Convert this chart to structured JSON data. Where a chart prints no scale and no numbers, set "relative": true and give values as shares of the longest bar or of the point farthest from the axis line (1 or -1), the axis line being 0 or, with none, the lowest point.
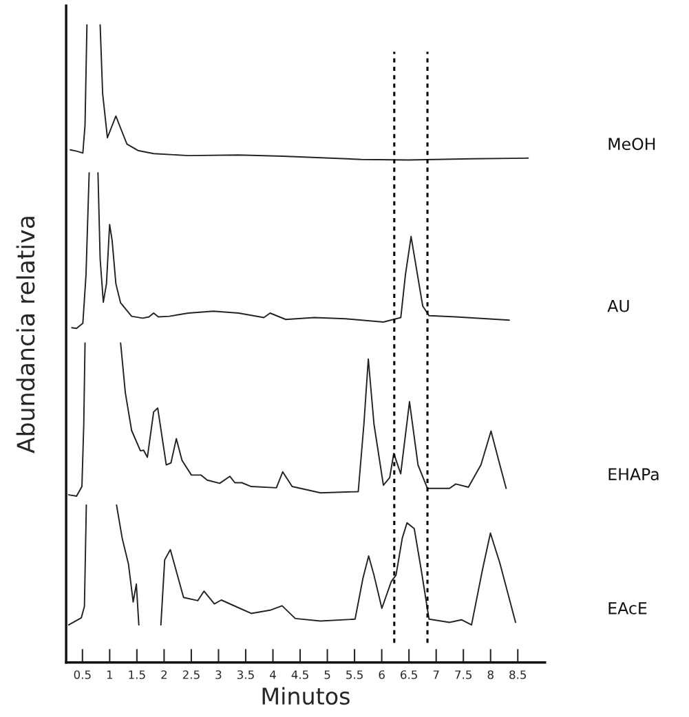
{
  "chart_data": {
    "type": "line",
    "relative": true,
    "xlabel": "Minutos",
    "ylabel": "Abundancia relativa",
    "legend": false,
    "grid": false,
    "marker": "none",
    "line_style": "solid",
    "tick_labels": "x",
    "xlim": [
      0.2,
      9
    ],
    "xticks": [
      0.5,
      1,
      1.5,
      2,
      2.5,
      3,
      3.5,
      4,
      4.5,
      5,
      5.5,
      6,
      6.5,
      7,
      7.5,
      8,
      8.5
    ],
    "ref_lines": [
      {
        "axis": "x",
        "value": 6.23,
        "color": "#000000",
        "line_style": "dotted"
      },
      {
        "axis": "x",
        "value": 6.84,
        "color": "#000000",
        "line_style": "dotted"
      }
    ],
    "series": [
      {
        "name": "MeOH",
        "color": "#222222",
        "x": [
          0.276,
          0.391,
          0.507,
          0.547,
          0.582,
          0.7,
          0.825,
          0.871,
          0.958,
          1.027,
          1.114,
          1.201,
          1.317,
          1.519,
          1.808,
          2.444,
          3.37,
          4.18,
          5.625,
          6.49,
          7.65,
          8.69
        ],
        "values": [
          0.804,
          0.802,
          0.799,
          0.843,
          1.0,
          null,
          1.0,
          0.892,
          0.823,
          0.838,
          0.857,
          0.838,
          0.813,
          0.803,
          0.798,
          0.795,
          0.796,
          0.794,
          0.789,
          0.788,
          0.79,
          0.791
        ]
      },
      {
        "name": "AU",
        "color": "#222222",
        "x": [
          0.304,
          0.391,
          0.507,
          0.565,
          0.623,
          0.7,
          0.785,
          0.825,
          0.883,
          0.941,
          0.999,
          1.045,
          1.114,
          1.201,
          1.403,
          1.606,
          1.722,
          1.808,
          1.895,
          2.097,
          2.444,
          2.907,
          3.37,
          3.833,
          3.948,
          4.237,
          4.758,
          5.336,
          6.03,
          6.35,
          6.435,
          6.539,
          6.637,
          6.753,
          6.869,
          7.36,
          8.344
        ],
        "values": [
          0.525,
          0.524,
          0.532,
          0.608,
          0.768,
          null,
          0.768,
          0.633,
          0.565,
          0.594,
          0.687,
          0.662,
          0.594,
          0.564,
          0.543,
          0.54,
          0.542,
          0.548,
          0.542,
          0.543,
          0.548,
          0.551,
          0.548,
          0.541,
          0.548,
          0.538,
          0.541,
          0.539,
          0.534,
          0.541,
          0.608,
          0.668,
          0.618,
          0.559,
          0.544,
          0.542,
          0.537
        ]
      },
      {
        "name": "EHAPa",
        "color": "#222222",
        "x": [
          0.247,
          0.391,
          0.49,
          0.524,
          0.547,
          0.9,
          1.201,
          1.288,
          1.403,
          1.565,
          1.623,
          1.693,
          1.808,
          1.883,
          2.04,
          2.126,
          2.225,
          2.329,
          2.502,
          2.676,
          2.792,
          3.023,
          3.208,
          3.3,
          3.428,
          3.601,
          4.064,
          4.18,
          4.353,
          4.874,
          5.568,
          5.672,
          5.753,
          5.857,
          6.03,
          6.146,
          6.221,
          6.348,
          6.51,
          6.666,
          6.84,
          7.245,
          7.36,
          7.592,
          7.823,
          8.008,
          8.17,
          8.286
        ],
        "values": [
          0.263,
          0.261,
          0.276,
          0.374,
          0.501,
          null,
          0.501,
          0.423,
          0.364,
          0.332,
          0.333,
          0.322,
          0.393,
          0.399,
          0.31,
          0.313,
          0.351,
          0.317,
          0.294,
          0.294,
          0.286,
          0.281,
          0.292,
          0.282,
          0.282,
          0.276,
          0.274,
          0.299,
          0.276,
          0.266,
          0.268,
          0.374,
          0.476,
          0.374,
          0.278,
          0.29,
          0.328,
          0.296,
          0.409,
          0.31,
          0.273,
          0.273,
          0.28,
          0.275,
          0.31,
          0.363,
          0.31,
          0.273
        ]
      },
      {
        "name": "EAcE",
        "color": "#222222",
        "x": [
          0.247,
          0.478,
          0.536,
          0.571,
          0.85,
          1.126,
          1.23,
          1.346,
          1.432,
          1.49,
          1.536,
          1.74,
          1.941,
          2.011,
          2.115,
          2.358,
          2.618,
          2.734,
          2.924,
          3.052,
          3.312,
          3.601,
          3.948,
          4.168,
          4.411,
          4.874,
          5.51,
          5.654,
          5.759,
          5.857,
          6.002,
          6.175,
          6.262,
          6.377,
          6.464,
          6.597,
          6.724,
          6.869,
          7.245,
          7.465,
          7.65,
          7.852,
          7.997,
          8.17,
          8.459
        ],
        "values": [
          0.059,
          0.07,
          0.088,
          0.247,
          null,
          0.247,
          0.195,
          0.154,
          0.095,
          0.123,
          0.059,
          null,
          0.059,
          0.161,
          0.177,
          0.102,
          0.097,
          0.112,
          0.092,
          0.098,
          0.088,
          0.077,
          0.082,
          0.089,
          0.069,
          0.065,
          0.068,
          0.132,
          0.167,
          0.137,
          0.085,
          0.127,
          0.137,
          0.195,
          0.219,
          0.21,
          0.146,
          0.068,
          0.063,
          0.067,
          0.059,
          0.146,
          0.203,
          0.156,
          0.063
        ]
      }
    ]
  }
}
